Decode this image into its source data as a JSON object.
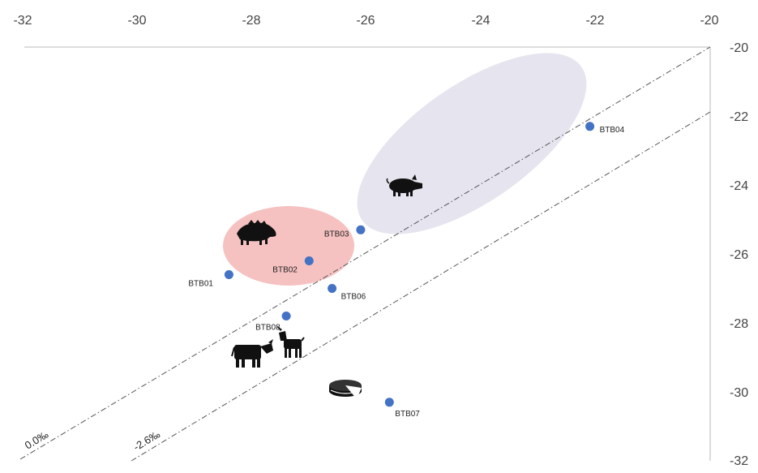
{
  "chart_data": {
    "type": "scatter",
    "xlim": [
      -32,
      -20
    ],
    "ylim": [
      -32,
      -20
    ],
    "x_ticks": [
      "-32",
      "-30",
      "-28",
      "-26",
      "-24",
      "-22",
      "-20"
    ],
    "y_ticks": [
      "-20",
      "-22",
      "-24",
      "-26",
      "-28",
      "-30",
      "-32"
    ],
    "x_axis_position": "top",
    "y_axis_position": "right",
    "grid": false,
    "point_color": "#4472C4",
    "points": [
      {
        "label": "BTB01",
        "x": -28.4,
        "y": -26.6
      },
      {
        "label": "BTB02",
        "x": -27.0,
        "y": -26.2
      },
      {
        "label": "BTB03",
        "x": -26.1,
        "y": -25.3
      },
      {
        "label": "BTB04",
        "x": -22.1,
        "y": -22.3
      },
      {
        "label": "BTB06",
        "x": -26.6,
        "y": -27.0
      },
      {
        "label": "BTB07",
        "x": -25.6,
        "y": -30.3
      },
      {
        "label": "BTB08",
        "x": -27.4,
        "y": -27.8
      }
    ],
    "reference_lines": [
      {
        "label": "0.0‰",
        "offset": 0.0
      },
      {
        "label": "-2.6‰",
        "offset": -2.6
      }
    ],
    "regions": [
      {
        "name": "wild-boar-region",
        "color": "#f4b6b6"
      },
      {
        "name": "pig-region",
        "color": "#e6e4ee"
      }
    ],
    "icons": [
      "wild-boar-icon",
      "pig-icon",
      "cow-icon",
      "goat-icon",
      "cheese-icon"
    ]
  }
}
